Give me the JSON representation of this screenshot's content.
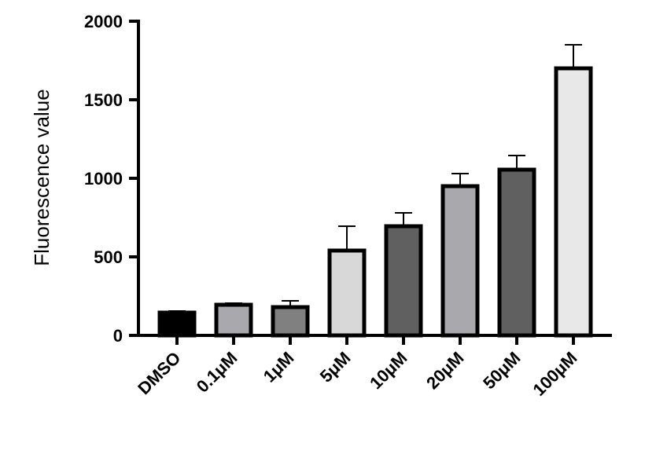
{
  "chart_data": {
    "type": "bar",
    "title": "",
    "xlabel": "",
    "ylabel": "Fluorescence value",
    "ylim": [
      0,
      2000
    ],
    "yticks": [
      0,
      500,
      1000,
      1500,
      2000
    ],
    "grid": false,
    "categories": [
      "DMSO",
      "0.1μM",
      "1μM",
      "5μM",
      "10μM",
      "20μM",
      "50μM",
      "100μM"
    ],
    "values": [
      145,
      195,
      180,
      540,
      695,
      950,
      1055,
      1700
    ],
    "errors": [
      10,
      10,
      40,
      155,
      85,
      80,
      90,
      150
    ],
    "colors": [
      "#000000",
      "#a8a8ad",
      "#808080",
      "#d8d8d8",
      "#606060",
      "#a8a8ad",
      "#606060",
      "#e8e8e8"
    ]
  }
}
